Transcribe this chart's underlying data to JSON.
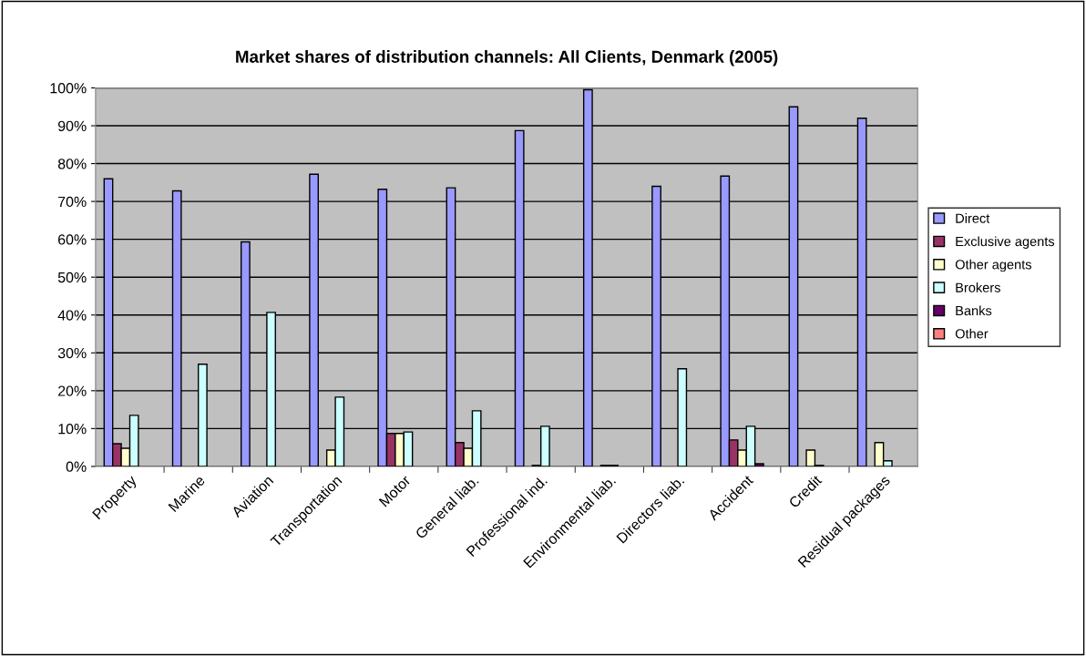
{
  "chart_data": {
    "type": "bar",
    "title": "Market shares of distribution channels: All Clients, Denmark (2005)",
    "categories": [
      "Property",
      "Marine",
      "Aviation",
      "Transportation",
      "Motor",
      "General liab.",
      "Professional ind.",
      "Environmental liab.",
      "Directors liab.",
      "Accident",
      "Credit",
      "Residual packages"
    ],
    "series": [
      {
        "name": "Direct",
        "color": "#9999ff",
        "values": [
          76,
          72.8,
          59.3,
          77.2,
          73.2,
          73.6,
          88.7,
          99.5,
          74,
          76.7,
          95,
          92
        ]
      },
      {
        "name": "Exclusive agents",
        "color": "#993366",
        "values": [
          6,
          null,
          null,
          null,
          8.7,
          6.3,
          null,
          null,
          null,
          7,
          null,
          null
        ]
      },
      {
        "name": "Other agents",
        "color": "#ffffcc",
        "values": [
          4.8,
          null,
          null,
          4.3,
          8.7,
          4.8,
          0.3,
          0.3,
          null,
          4.3,
          4.3,
          6.3
        ]
      },
      {
        "name": "Brokers",
        "color": "#ccffff",
        "values": [
          13.5,
          27,
          40.7,
          18.3,
          9.1,
          14.7,
          10.6,
          0.3,
          25.8,
          10.6,
          0.3,
          1.5
        ]
      },
      {
        "name": "Banks",
        "color": "#660066",
        "values": [
          null,
          null,
          null,
          null,
          null,
          null,
          null,
          null,
          null,
          0.7,
          null,
          null
        ]
      },
      {
        "name": "Other",
        "color": "#ff8080",
        "values": [
          null,
          null,
          null,
          null,
          null,
          null,
          null,
          null,
          null,
          null,
          null,
          null
        ]
      }
    ],
    "ylim": [
      0,
      100
    ],
    "yticks": [
      {
        "value": 0,
        "label": "0%"
      },
      {
        "value": 10,
        "label": "10%"
      },
      {
        "value": 20,
        "label": "20%"
      },
      {
        "value": 30,
        "label": "30%"
      },
      {
        "value": 40,
        "label": "40%"
      },
      {
        "value": 50,
        "label": "50%"
      },
      {
        "value": 60,
        "label": "60%"
      },
      {
        "value": 70,
        "label": "70%"
      },
      {
        "value": 80,
        "label": "80%"
      },
      {
        "value": 90,
        "label": "90%"
      },
      {
        "value": 100,
        "label": "100%"
      }
    ],
    "grid": "y",
    "legend": "right"
  }
}
